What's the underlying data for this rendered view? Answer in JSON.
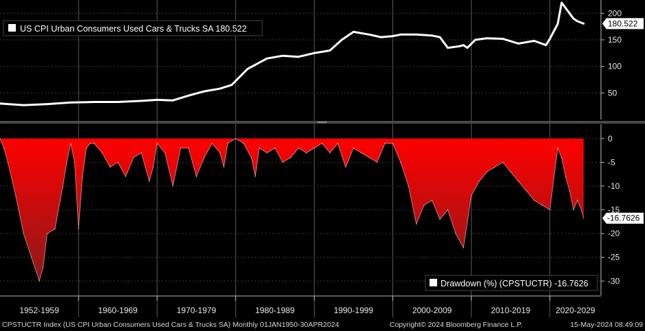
{
  "chart_data": [
    {
      "type": "line",
      "title": "US CPI Urban Consumers Used Cars & Trucks SA",
      "legend_label": "US CPI Urban Consumers Used Cars & Trucks SA 180.522",
      "last_value_label": "180.522",
      "ylim": [
        0,
        225
      ],
      "yticks": [
        50,
        100,
        150,
        200
      ],
      "ytick_labels": [
        "50",
        "100",
        "150",
        "200"
      ],
      "line_color": "#ffffff",
      "x": [
        1950.0,
        1953.0,
        1956.0,
        1959.0,
        1962.0,
        1965.0,
        1968.0,
        1970.0,
        1972.0,
        1974.0,
        1976.0,
        1978.0,
        1979.5,
        1980.5,
        1981.5,
        1982.5,
        1984.0,
        1986.0,
        1988.0,
        1990.0,
        1992.0,
        1993.5,
        1995.0,
        1997.0,
        1998.5,
        2000.0,
        2001.0,
        2003.0,
        2005.0,
        2006.0,
        2007.0,
        2008.5,
        2009.0,
        2009.5,
        2010.5,
        2012.0,
        2014.0,
        2016.0,
        2018.0,
        2019.5,
        2020.0,
        2021.0,
        2021.5,
        2022.0,
        2022.5,
        2023.0,
        2023.5,
        2024.3
      ],
      "values": [
        30,
        27,
        29,
        32,
        33,
        33,
        35,
        37,
        36,
        45,
        53,
        58,
        65,
        80,
        95,
        103,
        115,
        120,
        118,
        125,
        130,
        150,
        165,
        160,
        155,
        157,
        160,
        160,
        158,
        155,
        135,
        138,
        140,
        135,
        150,
        153,
        152,
        143,
        148,
        140,
        152,
        180,
        220,
        210,
        200,
        190,
        185,
        180.522
      ]
    },
    {
      "type": "area",
      "title": "Drawdown (%) (CPSTUCTR)",
      "legend_label": "Drawdown (%) (CPSTUCTR) -16.7626",
      "last_value_label": "-16.7626",
      "ylim": [
        -33,
        3
      ],
      "yticks": [
        0,
        -5,
        -10,
        -15,
        -20,
        -25,
        -30
      ],
      "ytick_labels": [
        "0",
        "-5",
        "-10",
        "-15",
        "-20",
        "-25",
        "-30"
      ],
      "fill_top_color": "#ff0000",
      "fill_bottom_color": "#8a1a1a",
      "x": [
        1950.0,
        1950.5,
        1951.0,
        1952.0,
        1953.0,
        1954.0,
        1955.0,
        1955.5,
        1956.0,
        1957.0,
        1958.0,
        1958.5,
        1959.0,
        1959.5,
        1960.0,
        1960.5,
        1961.0,
        1961.5,
        1962.0,
        1963.0,
        1964.0,
        1965.0,
        1966.0,
        1967.0,
        1968.0,
        1969.0,
        1969.5,
        1970.0,
        1971.0,
        1972.0,
        1973.0,
        1974.0,
        1975.0,
        1976.0,
        1977.0,
        1978.0,
        1978.5,
        1979.0,
        1980.0,
        1981.0,
        1982.0,
        1982.5,
        1983.0,
        1984.0,
        1985.0,
        1986.0,
        1987.0,
        1988.0,
        1989.0,
        1990.0,
        1991.0,
        1992.0,
        1993.0,
        1994.0,
        1995.0,
        1996.0,
        1997.0,
        1998.0,
        1999.0,
        2000.0,
        2001.0,
        2002.0,
        2003.0,
        2004.0,
        2005.0,
        2006.0,
        2007.0,
        2008.0,
        2009.0,
        2010.0,
        2011.0,
        2012.0,
        2013.0,
        2014.0,
        2015.0,
        2016.0,
        2017.0,
        2018.0,
        2019.0,
        2020.0,
        2021.0,
        2021.5,
        2022.0,
        2022.5,
        2023.0,
        2023.5,
        2024.0,
        2024.3
      ],
      "values": [
        0,
        -2,
        -5,
        -12,
        -20,
        -25,
        -30,
        -27,
        -20,
        -19,
        -10,
        -5,
        -1,
        -5,
        -19,
        -8,
        -2,
        -1,
        -1,
        -3,
        -6,
        -5,
        -8,
        -4,
        -3,
        -9,
        -6,
        -1,
        -3,
        -10,
        -2,
        -2,
        -8,
        -4,
        -1,
        -3,
        -6,
        -1,
        0,
        -1,
        -4,
        -8,
        -2,
        -3,
        -2,
        -5,
        -4,
        -2,
        -3,
        -2,
        -1,
        -3,
        -1,
        -6,
        -2,
        -3,
        -4,
        -5,
        -1,
        -1,
        -5,
        -10,
        -18,
        -14,
        -13,
        -17,
        -15,
        -20,
        -23,
        -12,
        -9,
        -7,
        -6,
        -5,
        -7,
        -9,
        -11,
        -13,
        -14,
        -15,
        -2,
        -4,
        -8,
        -11,
        -15,
        -13,
        -15,
        -16.7626
      ]
    }
  ],
  "x_axis": {
    "xlim": [
      1950.0,
      2026.5
    ],
    "decade_labels": [
      "1952-1959",
      "1960-1969",
      "1970-1979",
      "1980-1989",
      "1990-1999",
      "2000-2009",
      "2010-2019",
      "2020-2029"
    ],
    "decade_starts": [
      1950.0,
      1960.0,
      1970.0,
      1980.0,
      1990.0,
      2000.0,
      2010.0,
      2020.0
    ],
    "decade_ends": [
      1960.0,
      1970.0,
      1980.0,
      1990.0,
      2000.0,
      2010.0,
      2020.0,
      2026.5
    ]
  },
  "footer": {
    "left": "CPSTUCTR Index (US CPI Urban Consumers Used Cars & Trucks SA)  Monthly 01JAN1950-30APR2024",
    "center": "Copyright© 2024 Bloomberg Finance L.P.",
    "right": "15-May-2024 08:49:09"
  }
}
